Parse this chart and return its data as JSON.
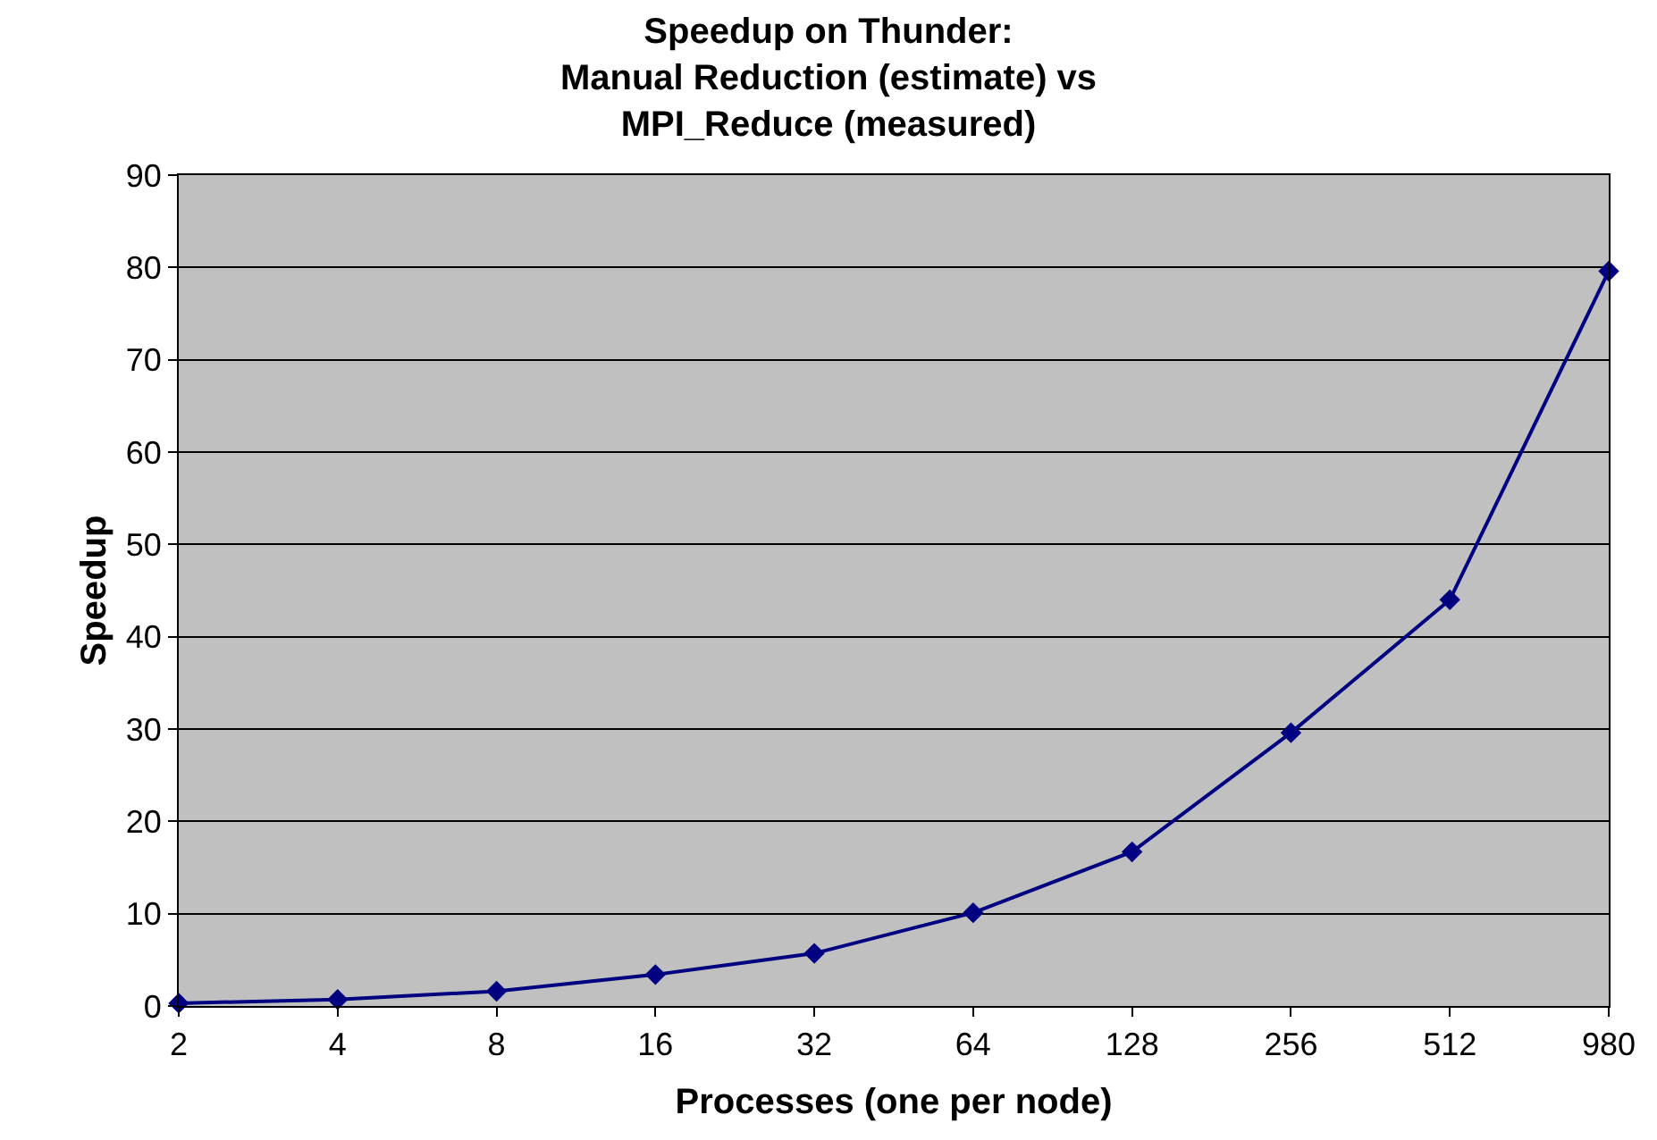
{
  "chart_data": {
    "type": "line",
    "title": "Speedup on Thunder:\nManual Reduction (estimate) vs\nMPI_Reduce (measured)",
    "xlabel": "Processes (one per node)",
    "ylabel": "Speedup",
    "categories": [
      "2",
      "4",
      "8",
      "16",
      "32",
      "64",
      "128",
      "256",
      "512",
      "980"
    ],
    "series": [
      {
        "color": "#000080",
        "values": [
          0.3,
          0.7,
          1.6,
          3.4,
          5.7,
          10.1,
          16.7,
          29.6,
          44.0,
          79.6
        ]
      }
    ],
    "ylim": [
      0,
      90
    ],
    "yticks": [
      0,
      10,
      20,
      30,
      40,
      50,
      60,
      70,
      80,
      90
    ],
    "grid": "y",
    "legend": false,
    "marker": "diamond",
    "line_style": "solid"
  }
}
